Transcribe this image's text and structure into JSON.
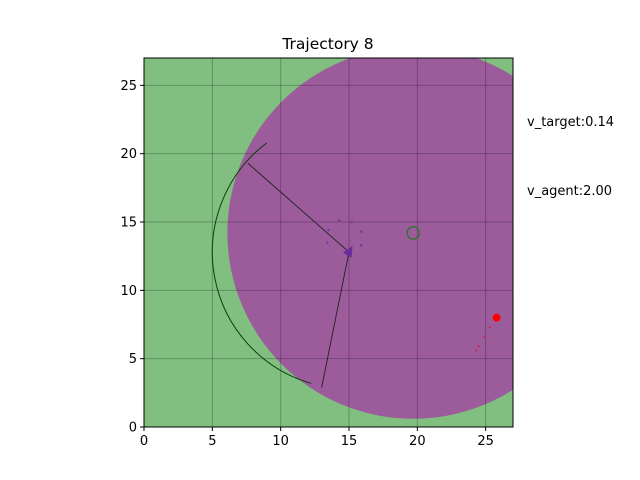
{
  "chart_data": {
    "type": "scatter",
    "title": "Trajectory 8",
    "xlabel": "",
    "ylabel": "",
    "xlim": [
      0,
      27
    ],
    "ylim": [
      0,
      27
    ],
    "xticks": [
      0,
      5,
      10,
      15,
      20,
      25
    ],
    "yticks": [
      0,
      5,
      10,
      15,
      20,
      25
    ],
    "grid": true,
    "annotations": {
      "v_target": "v_target:0.14",
      "v_agent": "v_agent:2.00"
    },
    "colors": {
      "background": "#80bf80",
      "region": "#9c5c9c",
      "grid": "#4f8f4f",
      "target": "#ff0000",
      "target_trail": "#c0305a",
      "agent": "#6a2a9a",
      "agent_trail": "#7a3aa6",
      "goal_ring": "#1a7a1a",
      "sensor_arc": "#0f3f0f",
      "sensor_lines": "#222222"
    },
    "region_circle": {
      "center": [
        19.7,
        14.2
      ],
      "radius": 13.6
    },
    "goal_circle": {
      "center": [
        19.7,
        14.2
      ],
      "radius": 0.45
    },
    "agent": {
      "position": [
        15.0,
        12.8
      ],
      "heading_deg": 60
    },
    "agent_trail": [
      [
        14.3,
        15.1
      ],
      [
        15.2,
        15.0
      ],
      [
        15.9,
        14.3
      ],
      [
        13.5,
        14.4
      ],
      [
        13.4,
        13.5
      ],
      [
        15.9,
        13.3
      ]
    ],
    "target": {
      "position": [
        25.8,
        8.0
      ]
    },
    "target_trail": [
      [
        24.3,
        5.6
      ],
      [
        24.5,
        5.9
      ],
      [
        24.9,
        6.6
      ],
      [
        25.3,
        7.3
      ]
    ],
    "sensor_fov": {
      "radius": 10.0,
      "from_deg": 127,
      "to_deg": 254
    },
    "sensor_endpoints": [
      [
        7.6,
        19.3
      ],
      [
        13.0,
        2.9
      ]
    ]
  }
}
